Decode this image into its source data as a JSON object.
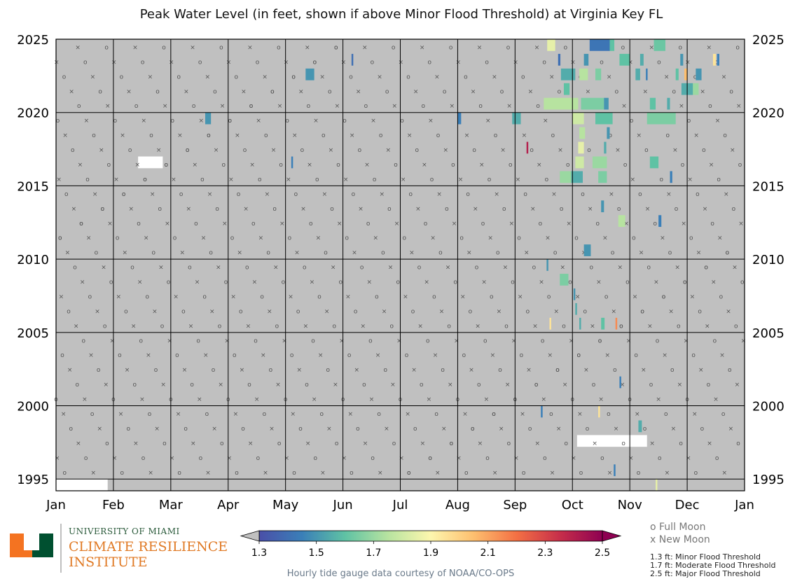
{
  "chart_data": {
    "type": "heatmap",
    "title": "Peak Water Level (in feet, shown if above Minor Flood Threshold) at Virginia Key FL",
    "x_tick_labels": [
      "Jan",
      "Feb",
      "Mar",
      "Apr",
      "May",
      "Jun",
      "Jul",
      "Aug",
      "Sep",
      "Oct",
      "Nov",
      "Dec",
      "Jan"
    ],
    "y_tick_labels": [
      "2025",
      "2020",
      "2015",
      "2010",
      "2005",
      "2000",
      "1995"
    ],
    "year_range": [
      1994.2,
      2025
    ],
    "colorbar": {
      "min": 1.3,
      "max": 2.5,
      "tick_labels": [
        "1.3",
        "1.5",
        "1.7",
        "1.9",
        "2.1",
        "2.3",
        "2.5"
      ],
      "colors": [
        "#4a4fa8",
        "#3a7fb8",
        "#5fc2a4",
        "#b7e3a0",
        "#fdf6ae",
        "#fdbf6f",
        "#f47044",
        "#c72f4a",
        "#8e0152"
      ]
    },
    "colors": {
      "no_flood": "#c0c0c0",
      "no_data": "#ffffff",
      "moon_marker": "#555555"
    },
    "events": [
      {
        "y": 2024.6,
        "x": 8.56,
        "w": 0.14,
        "v": 1.85
      },
      {
        "y": 2024.6,
        "x": 9.3,
        "w": 0.35,
        "v": 1.42
      },
      {
        "y": 2024.6,
        "x": 9.65,
        "w": 0.08,
        "v": 1.6
      },
      {
        "y": 2024.6,
        "x": 10.42,
        "w": 0.2,
        "v": 1.62
      },
      {
        "y": 2023.6,
        "x": 11.45,
        "w": 0.05,
        "v": 1.95
      },
      {
        "y": 2023.6,
        "x": 11.52,
        "w": 0.04,
        "v": 1.45
      },
      {
        "y": 2023.6,
        "x": 9.82,
        "w": 0.18,
        "v": 1.6
      },
      {
        "y": 2023.6,
        "x": 9.2,
        "w": 0.08,
        "v": 1.5
      },
      {
        "y": 2023.6,
        "x": 8.75,
        "w": 0.04,
        "v": 1.4
      },
      {
        "y": 2023.6,
        "x": 10.18,
        "w": 0.06,
        "v": 1.55
      },
      {
        "y": 2023.6,
        "x": 5.15,
        "w": 0.03,
        "v": 1.4
      },
      {
        "y": 2023.6,
        "x": 10.88,
        "w": 0.05,
        "v": 1.5
      },
      {
        "y": 2022.6,
        "x": 4.35,
        "w": 0.15,
        "v": 1.5
      },
      {
        "y": 2022.6,
        "x": 8.8,
        "w": 0.25,
        "v": 1.55
      },
      {
        "y": 2022.6,
        "x": 9.12,
        "w": 0.15,
        "v": 1.75
      },
      {
        "y": 2022.6,
        "x": 9.4,
        "w": 0.1,
        "v": 1.65
      },
      {
        "y": 2022.6,
        "x": 10.1,
        "w": 0.08,
        "v": 1.55
      },
      {
        "y": 2022.6,
        "x": 10.28,
        "w": 0.03,
        "v": 1.45
      },
      {
        "y": 2022.6,
        "x": 10.8,
        "w": 0.05,
        "v": 1.6
      },
      {
        "y": 2022.6,
        "x": 10.95,
        "w": 0.05,
        "v": 2.05
      },
      {
        "y": 2022.6,
        "x": 11.15,
        "w": 0.1,
        "v": 1.5
      },
      {
        "y": 2021.6,
        "x": 8.85,
        "w": 0.1,
        "v": 1.6
      },
      {
        "y": 2021.6,
        "x": 10.9,
        "w": 0.2,
        "v": 1.55
      },
      {
        "y": 2021.6,
        "x": 11.1,
        "w": 0.1,
        "v": 1.7
      },
      {
        "y": 2020.6,
        "x": 8.5,
        "w": 0.6,
        "v": 1.75
      },
      {
        "y": 2020.6,
        "x": 9.15,
        "w": 0.4,
        "v": 1.65
      },
      {
        "y": 2020.6,
        "x": 9.55,
        "w": 0.08,
        "v": 1.5
      },
      {
        "y": 2020.6,
        "x": 10.35,
        "w": 0.1,
        "v": 1.6
      },
      {
        "y": 2020.6,
        "x": 10.65,
        "w": 0.05,
        "v": 1.55
      },
      {
        "y": 2019.6,
        "x": 2.6,
        "w": 0.1,
        "v": 1.5
      },
      {
        "y": 2019.6,
        "x": 7.0,
        "w": 0.06,
        "v": 1.45
      },
      {
        "y": 2019.6,
        "x": 7.95,
        "w": 0.15,
        "v": 1.55
      },
      {
        "y": 2019.6,
        "x": 9.0,
        "w": 0.2,
        "v": 1.8
      },
      {
        "y": 2019.6,
        "x": 9.4,
        "w": 0.3,
        "v": 1.6
      },
      {
        "y": 2019.6,
        "x": 10.3,
        "w": 0.5,
        "v": 1.65
      },
      {
        "y": 2018.6,
        "x": 9.12,
        "w": 0.1,
        "v": 1.75
      },
      {
        "y": 2018.6,
        "x": 9.6,
        "w": 0.05,
        "v": 1.5
      },
      {
        "y": 2017.6,
        "x": 8.2,
        "w": 0.03,
        "v": 2.4
      },
      {
        "y": 2017.6,
        "x": 9.1,
        "w": 0.1,
        "v": 1.85
      },
      {
        "y": 2017.6,
        "x": 9.55,
        "w": 0.04,
        "v": 1.55
      },
      {
        "y": 2016.6,
        "x": 4.1,
        "w": 0.03,
        "v": 1.45
      },
      {
        "y": 2016.6,
        "x": 9.05,
        "w": 0.15,
        "v": 1.8
      },
      {
        "y": 2016.6,
        "x": 9.35,
        "w": 0.25,
        "v": 1.7
      },
      {
        "y": 2016.6,
        "x": 10.35,
        "w": 0.15,
        "v": 1.6
      },
      {
        "y": 2015.6,
        "x": 8.78,
        "w": 0.2,
        "v": 1.7
      },
      {
        "y": 2015.6,
        "x": 8.98,
        "w": 0.2,
        "v": 1.55
      },
      {
        "y": 2015.6,
        "x": 9.45,
        "w": 0.15,
        "v": 1.65
      },
      {
        "y": 2015.6,
        "x": 10.7,
        "w": 0.04,
        "v": 1.45
      },
      {
        "y": 2013.6,
        "x": 9.5,
        "w": 0.05,
        "v": 1.5
      },
      {
        "y": 2012.6,
        "x": 9.8,
        "w": 0.12,
        "v": 1.75
      },
      {
        "y": 2012.6,
        "x": 10.5,
        "w": 0.05,
        "v": 1.45
      },
      {
        "y": 2010.6,
        "x": 9.2,
        "w": 0.12,
        "v": 1.5
      },
      {
        "y": 2009.6,
        "x": 8.55,
        "w": 0.03,
        "v": 1.5
      },
      {
        "y": 2008.6,
        "x": 8.78,
        "w": 0.15,
        "v": 1.65
      },
      {
        "y": 2007.6,
        "x": 9.02,
        "w": 0.03,
        "v": 1.5
      },
      {
        "y": 2006.6,
        "x": 9.05,
        "w": 0.03,
        "v": 1.55
      },
      {
        "y": 2005.6,
        "x": 8.6,
        "w": 0.03,
        "v": 1.95
      },
      {
        "y": 2005.6,
        "x": 9.12,
        "w": 0.03,
        "v": 1.55
      },
      {
        "y": 2005.6,
        "x": 9.5,
        "w": 0.06,
        "v": 1.6
      },
      {
        "y": 2005.6,
        "x": 9.75,
        "w": 0.03,
        "v": 2.15
      },
      {
        "y": 2001.6,
        "x": 9.82,
        "w": 0.03,
        "v": 1.45
      },
      {
        "y": 1999.6,
        "x": 8.45,
        "w": 0.03,
        "v": 1.45
      },
      {
        "y": 1999.6,
        "x": 9.45,
        "w": 0.03,
        "v": 1.95
      },
      {
        "y": 1998.6,
        "x": 10.15,
        "w": 0.06,
        "v": 1.55
      },
      {
        "y": 1995.6,
        "x": 9.72,
        "w": 0.03,
        "v": 1.45
      },
      {
        "y": 1994.6,
        "x": 10.45,
        "w": 0.03,
        "v": 1.85
      }
    ],
    "missing_data": [
      {
        "y": 2016.6,
        "x": 1.43,
        "w": 0.43
      },
      {
        "y": 1997.6,
        "x": 9.08,
        "w": 1.22
      },
      {
        "y": 1994.6,
        "x": 0.0,
        "w": 0.9
      }
    ],
    "moon_legend": {
      "full": "o  Full Moon",
      "new": "x  New Moon"
    },
    "thresholds": [
      "1.3 ft:  Minor Flood Threshold",
      "1.7 ft:  Moderate Flood Threshold",
      "2.5 ft:  Major Flood Threshold"
    ],
    "credit": "Hourly tide gauge data courtesy of NOAA/CO-OPS"
  },
  "logo": {
    "university": "UNIVERSITY OF MIAMI",
    "institute_line1": "CLIMATE RESILIENCE",
    "institute_line2": "INSTITUTE"
  }
}
